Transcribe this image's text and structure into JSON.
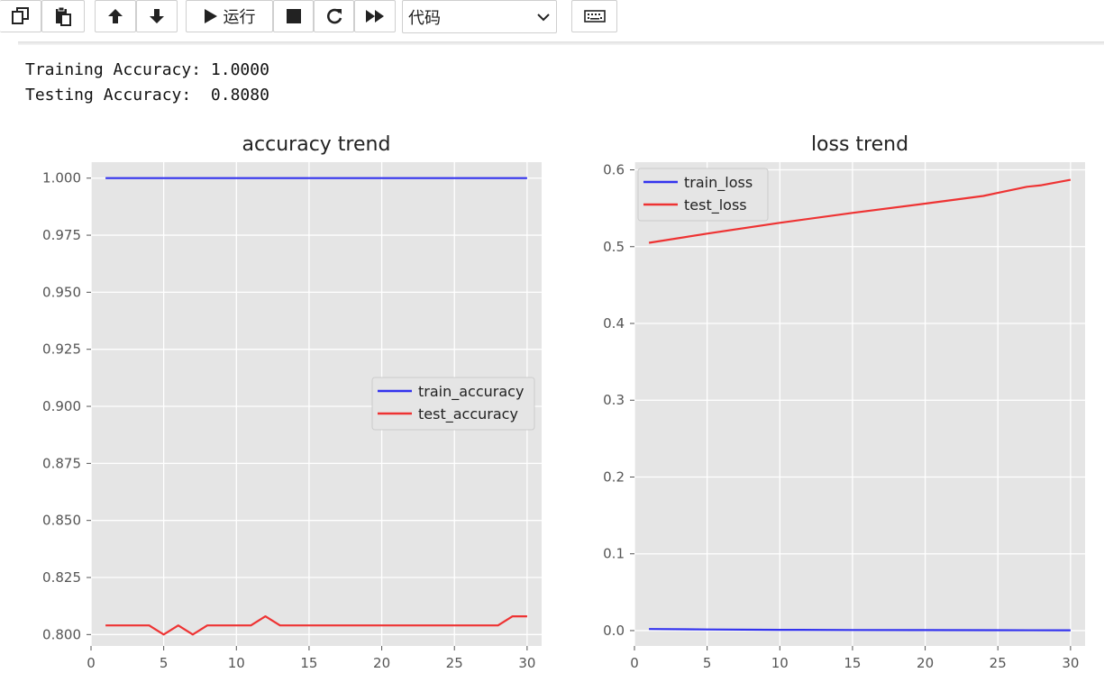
{
  "toolbar": {
    "buttons": [
      {
        "name": "copy-cells-button",
        "icon": "copy-icon"
      },
      {
        "name": "paste-cells-button",
        "icon": "paste-icon"
      },
      {
        "name": "move-up-button",
        "icon": "arrow-up-icon"
      },
      {
        "name": "move-down-button",
        "icon": "arrow-down-icon"
      },
      {
        "name": "run-button",
        "icon": "play-icon"
      },
      {
        "name": "interrupt-button",
        "icon": "stop-icon"
      },
      {
        "name": "restart-button",
        "icon": "refresh-icon"
      },
      {
        "name": "restart-run-all-button",
        "icon": "fast-forward-icon"
      },
      {
        "name": "command-palette-button",
        "icon": "keyboard-icon"
      }
    ],
    "run_label": "运行",
    "cell_type": "代码"
  },
  "output": {
    "line1": "Training Accuracy: 1.0000",
    "line2": "Testing Accuracy:  0.8080"
  },
  "colors": {
    "plot_bg": "#e5e5e5",
    "grid": "#ffffff",
    "train": "#3333ee",
    "test": "#ee3333"
  },
  "chart_data": [
    {
      "type": "line",
      "title": "accuracy trend",
      "xlim": [
        0,
        31
      ],
      "ylim": [
        0.795,
        1.007
      ],
      "xticks": [
        0,
        5,
        10,
        15,
        20,
        25,
        30
      ],
      "yticks": [
        0.8,
        0.825,
        0.85,
        0.875,
        0.9,
        0.925,
        0.95,
        0.975,
        1.0
      ],
      "ytick_labels": [
        "0.800",
        "0.825",
        "0.850",
        "0.875",
        "0.900",
        "0.925",
        "0.950",
        "0.975",
        "1.000"
      ],
      "grid": true,
      "legend_position": "center-right",
      "series": [
        {
          "name": "train_accuracy",
          "color": "#3333ee",
          "x": [
            1,
            30
          ],
          "y": [
            1.0,
            1.0
          ]
        },
        {
          "name": "test_accuracy",
          "color": "#ee3333",
          "x": [
            1,
            2,
            3,
            4,
            5,
            6,
            7,
            8,
            9,
            10,
            11,
            12,
            13,
            14,
            15,
            16,
            17,
            18,
            19,
            20,
            21,
            22,
            23,
            24,
            25,
            26,
            27,
            28,
            29,
            30
          ],
          "y": [
            0.804,
            0.804,
            0.804,
            0.804,
            0.8,
            0.804,
            0.8,
            0.804,
            0.804,
            0.804,
            0.804,
            0.808,
            0.804,
            0.804,
            0.804,
            0.804,
            0.804,
            0.804,
            0.804,
            0.804,
            0.804,
            0.804,
            0.804,
            0.804,
            0.804,
            0.804,
            0.804,
            0.804,
            0.808,
            0.808
          ]
        }
      ]
    },
    {
      "type": "line",
      "title": "loss trend",
      "xlim": [
        0,
        31
      ],
      "ylim": [
        -0.02,
        0.61
      ],
      "xticks": [
        0,
        5,
        10,
        15,
        20,
        25,
        30
      ],
      "yticks": [
        0.0,
        0.1,
        0.2,
        0.3,
        0.4,
        0.5,
        0.6
      ],
      "ytick_labels": [
        "0.0",
        "0.1",
        "0.2",
        "0.3",
        "0.4",
        "0.5",
        "0.6"
      ],
      "grid": true,
      "legend_position": "upper-left",
      "series": [
        {
          "name": "train_loss",
          "color": "#3333ee",
          "x": [
            1,
            5,
            10,
            15,
            20,
            25,
            30
          ],
          "y": [
            0.002,
            0.0015,
            0.001,
            0.0008,
            0.0006,
            0.0005,
            0.0004
          ]
        },
        {
          "name": "test_loss",
          "color": "#ee3333",
          "x": [
            1,
            5,
            10,
            15,
            20,
            24,
            25,
            26,
            27,
            28,
            30
          ],
          "y": [
            0.505,
            0.517,
            0.531,
            0.544,
            0.556,
            0.566,
            0.57,
            0.574,
            0.578,
            0.58,
            0.587
          ]
        }
      ]
    }
  ]
}
